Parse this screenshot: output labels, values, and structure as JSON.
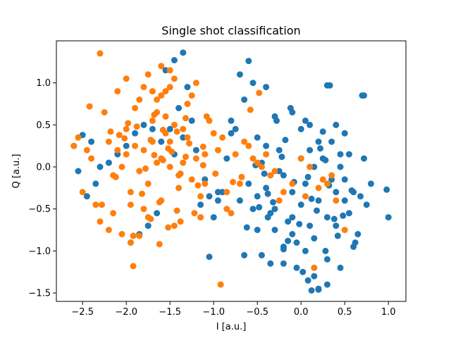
{
  "chart_data": {
    "type": "scatter",
    "title": "Single shot classification",
    "xlabel": "I [a.u.]",
    "ylabel": "Q [a.u.]",
    "xlim": [
      -2.8,
      1.2
    ],
    "ylim": [
      -1.6,
      1.5
    ],
    "xticks": [
      -2.5,
      -2.0,
      -1.5,
      -1.0,
      -0.5,
      0.0,
      0.5,
      1.0
    ],
    "xtick_labels": [
      "−2.5",
      "−2.0",
      "−1.5",
      "−1.0",
      "−0.5",
      "0.0",
      "0.5",
      "1.0"
    ],
    "yticks": [
      -1.5,
      -1.0,
      -0.5,
      0.0,
      0.5,
      1.0
    ],
    "ytick_labels": [
      "−1.5",
      "−1.0",
      "−0.5",
      "0.0",
      "0.5",
      "1.0"
    ],
    "grid": false,
    "series": [
      {
        "color": "#1f77b4",
        "x": [
          -0.1,
          0.2,
          0.05,
          -0.3,
          -0.5,
          0.3,
          -0.2,
          0.1,
          -0.4,
          0.0,
          0.4,
          -0.1,
          -0.6,
          0.25,
          -0.35,
          0.15,
          -0.05,
          0.5,
          -0.25,
          0.35,
          -0.45,
          0.05,
          -0.15,
          0.2,
          -0.3,
          0.45,
          -0.55,
          0.1,
          0.6,
          -0.2,
          0.3,
          -0.7,
          0.0,
          -0.1,
          0.15,
          -0.4,
          0.55,
          -0.25,
          0.4,
          -0.5,
          0.7,
          0.75,
          1.0,
          0.98,
          0.65,
          0.8,
          0.72,
          0.68,
          0.6,
          0.55,
          0.5,
          0.45,
          0.3,
          0.2,
          0.1,
          -0.8,
          -0.9,
          -0.85,
          -0.75,
          -0.65,
          -0.55,
          -0.6,
          -0.7,
          -0.95,
          -1.0,
          -1.05,
          -1.1,
          -0.95,
          -0.8,
          -0.3,
          -0.4,
          -0.1,
          0.05,
          0.25,
          0.35,
          0.4,
          0.15,
          0.08,
          0.12,
          0.2,
          -0.05,
          -0.35,
          -0.2,
          -0.45,
          -0.15,
          0.0,
          0.3,
          0.33,
          0.72,
          0.62,
          -0.38,
          -0.5,
          -0.65,
          -0.2,
          0.02,
          0.45,
          0.28,
          -0.12,
          -0.28,
          0.5,
          -1.35,
          -1.45,
          -1.55,
          -1.3,
          -1.4,
          -1.25,
          -1.5,
          -1.35,
          -1.2,
          -1.45,
          -1.6,
          -1.7,
          -1.8,
          -1.9,
          -2.0,
          -2.1,
          -2.2,
          -2.3,
          -2.4,
          -2.5,
          -2.55,
          -2.6,
          -2.35,
          -2.45,
          -1.95,
          -1.85,
          -1.75,
          -1.65,
          -1.15,
          -1.05,
          -0.08,
          0.18,
          -0.42,
          0.38,
          -0.22,
          0.58,
          -0.62,
          0.08,
          -0.32,
          0.22,
          0.42,
          -0.52,
          0.12,
          -0.18,
          0.32,
          -0.48,
          0.48,
          -0.02,
          0.28,
          -0.38
        ],
        "y": [
          -0.3,
          -0.4,
          -0.2,
          -0.5,
          -0.35,
          -0.6,
          -0.1,
          -0.7,
          -0.25,
          -0.45,
          -0.3,
          -0.8,
          -0.2,
          0.1,
          -0.55,
          0.0,
          -0.9,
          -0.4,
          0.2,
          -0.15,
          0.05,
          -1.0,
          -0.65,
          0.3,
          -0.75,
          0.15,
          -0.5,
          0.2,
          -0.3,
          -0.95,
          -1.1,
          -0.4,
          0.1,
          -0.6,
          -0.85,
          0.25,
          -0.55,
          -0.05,
          -0.7,
          0.35,
          0.85,
          -0.45,
          -0.6,
          -0.27,
          -0.8,
          -0.2,
          0.1,
          -0.35,
          -0.95,
          0.15,
          0.4,
          -1.2,
          0.97,
          -1.45,
          0.5,
          0.4,
          -0.3,
          0.1,
          0.45,
          0.8,
          1.0,
          1.26,
          1.1,
          -0.4,
          -0.6,
          -1.07,
          -0.15,
          -0.3,
          0.55,
          0.6,
          0.95,
          0.65,
          0.55,
          0.42,
          0.3,
          0.5,
          -1.3,
          -1.35,
          -1.47,
          -1.46,
          -1.2,
          -1.15,
          -0.98,
          -1.05,
          -0.88,
          0.45,
          -1.4,
          0.97,
          0.85,
          -0.9,
          -0.6,
          -0.75,
          -1.05,
          -1.15,
          -1.25,
          0.0,
          -1.0,
          0.7,
          0.55,
          -0.15,
          1.36,
          1.27,
          1.15,
          0.95,
          0.7,
          0.55,
          0.45,
          0.35,
          0.2,
          0.15,
          0.3,
          0.45,
          0.5,
          0.4,
          0.25,
          0.15,
          0.05,
          0.0,
          0.3,
          0.38,
          -0.05,
          0.25,
          -0.2,
          -0.35,
          -0.9,
          -0.8,
          -0.7,
          -0.55,
          -0.45,
          -0.35,
          -0.18,
          -0.52,
          -0.08,
          -0.62,
          0.12,
          -0.28,
          -0.72,
          -0.12,
          -0.42,
          0.22,
          -0.82,
          0.02,
          -0.38,
          0.32,
          -0.22,
          -0.48,
          -0.58,
          -0.68,
          0.08,
          -0.32
        ]
      },
      {
        "color": "#ff7f0e",
        "x": [
          -1.8,
          -1.6,
          -1.7,
          -1.5,
          -1.9,
          -1.4,
          -2.0,
          -1.3,
          -1.75,
          -1.55,
          -1.65,
          -1.85,
          -1.45,
          -2.1,
          -1.2,
          -1.95,
          -1.35,
          -1.6,
          -1.7,
          -1.5,
          -1.8,
          -2.05,
          -1.25,
          -1.55,
          -1.9,
          -1.4,
          -1.65,
          -2.2,
          -1.1,
          -1.75,
          -1.3,
          -1.85,
          -1.45,
          -2.0,
          -1.15,
          -1.6,
          -1.7,
          -1.5,
          -1.95,
          -1.35,
          -2.3,
          -2.25,
          -2.4,
          -2.5,
          -2.6,
          -2.55,
          -2.45,
          -2.35,
          -2.15,
          -2.1,
          -2.0,
          -1.05,
          -1.0,
          -0.95,
          -0.9,
          -0.85,
          -0.8,
          -0.75,
          -0.7,
          -0.65,
          -0.6,
          -0.55,
          -0.5,
          -0.45,
          -0.4,
          -0.35,
          -0.3,
          -0.25,
          -0.2,
          -0.1,
          0.0,
          0.05,
          0.1,
          0.2,
          0.25,
          0.3,
          0.35,
          0.4,
          0.5,
          -1.2,
          -1.25,
          -1.3,
          -1.45,
          -1.5,
          -1.55,
          -1.6,
          -1.65,
          -1.75,
          -1.8,
          -1.95,
          -2.05,
          -2.2,
          -2.3,
          -1.1,
          -1.15,
          -0.92,
          -0.85,
          -2.15,
          -2.28,
          -1.92,
          -1.85,
          -1.62,
          -1.38,
          -1.22,
          -1.08,
          -2.42,
          -2.18,
          -1.98,
          -1.72,
          -1.52,
          -1.32,
          -1.12,
          -0.98,
          -0.78,
          -0.68,
          0.15,
          -0.58,
          -0.48,
          -1.42,
          -1.68,
          -1.88,
          -2.08,
          -1.28,
          -1.48,
          -1.58,
          -1.78,
          -2.12,
          -1.18,
          -1.82,
          -1.62,
          -1.42,
          -1.72,
          -1.52,
          -1.92,
          -1.32,
          -2.02,
          -1.12,
          -1.68,
          -1.58,
          -1.38
        ],
        "y": [
          0.2,
          0.1,
          0.3,
          0.0,
          0.25,
          -0.1,
          0.15,
          0.35,
          -0.2,
          0.4,
          0.05,
          -0.05,
          0.5,
          0.2,
          0.1,
          -0.3,
          0.45,
          -0.4,
          0.55,
          0.3,
          -0.5,
          0.0,
          -0.15,
          0.6,
          0.7,
          -0.25,
          0.65,
          0.3,
          0.15,
          -0.6,
          0.75,
          0.8,
          -0.7,
          0.45,
          -0.35,
          0.85,
          0.9,
          0.95,
          -0.45,
          0.05,
          1.35,
          0.65,
          0.1,
          -0.3,
          0.25,
          0.35,
          0.2,
          -0.45,
          -0.1,
          0.9,
          1.05,
          0.55,
          0.4,
          0.2,
          0.35,
          -0.5,
          -0.55,
          0.15,
          -0.2,
          0.3,
          0.25,
          0.1,
          0.05,
          0.0,
          0.15,
          -0.1,
          -0.05,
          -0.4,
          -0.3,
          -0.2,
          0.1,
          -0.35,
          0.0,
          -0.25,
          -0.15,
          -0.2,
          -0.1,
          -0.4,
          -0.75,
          1.0,
          0.85,
          0.75,
          1.05,
          1.15,
          0.9,
          1.2,
          0.8,
          1.1,
          0.95,
          -0.9,
          -0.8,
          -0.75,
          -0.65,
          -0.2,
          -0.6,
          -1.4,
          -0.3,
          -0.55,
          -0.45,
          -1.18,
          -0.82,
          -0.92,
          -0.65,
          -0.55,
          0.6,
          0.72,
          0.42,
          0.52,
          0.32,
          0.22,
          0.12,
          0.02,
          -0.08,
          -0.18,
          -0.12,
          -1.2,
          0.68,
          0.88,
          0.42,
          0.62,
          0.48,
          0.38,
          0.28,
          0.18,
          0.08,
          -0.02,
          -0.12,
          -0.22,
          -0.32,
          -0.42,
          -0.52,
          -0.62,
          -0.72,
          -0.82,
          0.58,
          0.34,
          0.24,
          0.14,
          0.44,
          -0.08
        ]
      }
    ]
  }
}
